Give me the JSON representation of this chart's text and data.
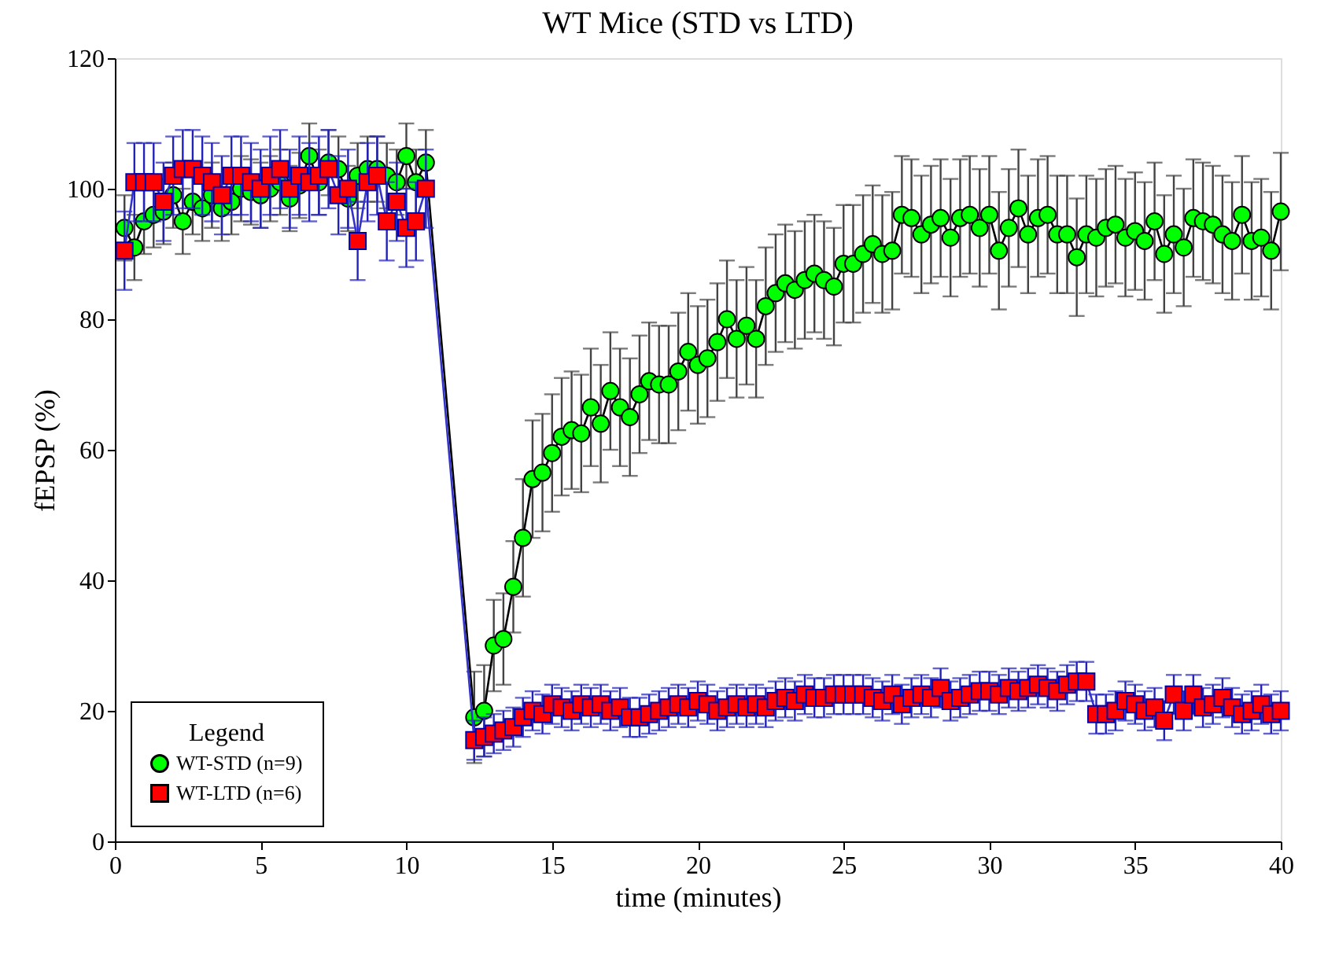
{
  "chart_data": {
    "type": "line",
    "title": "WT Mice (STD vs LTD)",
    "xlabel": "time (minutes)",
    "ylabel": "fEPSP (%)",
    "legend_title": "Legend",
    "x": [
      0.33,
      0.67,
      1,
      1.33,
      1.67,
      2,
      2.33,
      2.67,
      3,
      3.33,
      3.67,
      4,
      4.33,
      4.67,
      5,
      5.33,
      5.67,
      6,
      6.33,
      6.67,
      7,
      7.33,
      7.67,
      8,
      8.33,
      8.67,
      9,
      9.33,
      9.67,
      10,
      10.33,
      10.67,
      12.33,
      12.67,
      13,
      13.33,
      13.67,
      14,
      14.33,
      14.67,
      15,
      15.33,
      15.67,
      16,
      16.33,
      16.67,
      17,
      17.33,
      17.67,
      18,
      18.33,
      18.67,
      19,
      19.33,
      19.67,
      20,
      20.33,
      20.67,
      21,
      21.33,
      21.67,
      22,
      22.33,
      22.67,
      23,
      23.33,
      23.67,
      24,
      24.33,
      24.67,
      25,
      25.33,
      25.67,
      26,
      26.33,
      26.67,
      27,
      27.33,
      27.67,
      28,
      28.33,
      28.67,
      29,
      29.33,
      29.67,
      30,
      30.33,
      30.67,
      31,
      31.33,
      31.67,
      32,
      32.33,
      32.67,
      33,
      33.33,
      33.67,
      34,
      34.33,
      34.67,
      35,
      35.33,
      35.67,
      36,
      36.33,
      36.67,
      37,
      37.33,
      37.67,
      38,
      38.33,
      38.67,
      39,
      39.33,
      39.67,
      40
    ],
    "series": [
      {
        "name": "WT-STD (n=9)",
        "color": "#00ff00",
        "marker": "circle",
        "values": [
          94,
          91,
          95,
          96,
          96.5,
          99,
          95,
          98,
          97,
          99,
          97,
          98,
          100,
          99.5,
          99,
          100,
          101,
          98.5,
          100.5,
          105,
          101,
          104,
          103,
          98.5,
          102,
          103,
          103,
          102,
          101,
          105,
          101,
          104,
          19,
          20,
          30,
          31,
          39,
          46.5,
          55.5,
          56.5,
          59.5,
          62,
          63,
          62.5,
          66.5,
          64,
          69,
          66.5,
          65,
          68.5,
          70.5,
          70,
          70,
          72,
          75,
          73,
          74,
          76.5,
          80,
          77,
          79,
          77,
          82,
          84,
          85.5,
          84.5,
          86,
          87,
          86,
          85,
          88.5,
          88.5,
          90,
          91.5,
          90,
          90.5,
          96,
          95.5,
          93,
          94.5,
          95.5,
          92.5,
          95.5,
          96,
          94,
          96,
          90.5,
          94,
          97,
          93,
          95.5,
          96,
          93,
          93,
          89.5,
          93,
          92.5,
          94,
          94.5,
          92.5,
          93.5,
          92,
          95,
          90,
          93,
          91,
          95.5,
          95,
          94.5,
          93,
          92,
          96,
          92,
          92.5,
          90.5,
          96.5
        ],
        "errors": [
          5,
          5,
          5,
          5,
          5,
          5,
          5,
          5,
          5,
          5,
          5,
          5,
          5,
          5,
          5,
          5,
          5,
          5,
          5,
          5,
          5,
          5,
          5,
          5,
          5,
          5,
          5,
          5,
          5,
          5,
          5,
          5,
          7,
          7,
          7,
          7,
          7,
          9,
          9,
          9,
          9,
          9,
          9,
          9,
          9,
          9,
          9,
          9,
          9,
          9,
          9,
          9,
          9,
          9,
          9,
          9,
          9,
          9,
          9,
          9,
          9,
          9,
          9,
          9,
          9,
          9,
          9,
          9,
          9,
          9,
          9,
          9,
          9,
          9,
          9,
          9,
          9,
          9,
          9,
          9,
          9,
          9,
          9,
          9,
          9,
          9,
          9,
          9,
          9,
          9,
          9,
          9,
          9,
          9,
          9,
          9,
          9,
          9,
          9,
          9,
          9,
          9,
          9,
          9,
          9,
          9,
          9,
          9,
          9,
          9,
          9,
          9,
          9,
          9,
          9,
          9
        ]
      },
      {
        "name": "WT-LTD (n=6)",
        "color": "#ff0000",
        "marker": "square",
        "values": [
          90.5,
          101,
          101,
          101,
          98,
          102,
          103,
          103,
          102,
          101,
          99,
          102,
          102,
          101,
          100,
          102,
          103,
          100,
          102,
          101,
          102,
          103,
          99,
          100,
          92,
          101,
          102,
          95,
          98,
          94,
          95,
          100,
          15.5,
          16,
          16.5,
          17,
          17.5,
          19,
          20,
          19.5,
          21,
          20.5,
          20,
          21,
          20.5,
          21,
          20,
          20.5,
          19,
          19,
          19.5,
          20,
          20.5,
          21,
          20.5,
          21.5,
          21,
          20,
          20.5,
          21,
          20.5,
          21,
          20.5,
          21.5,
          22,
          21.5,
          22.5,
          22,
          22,
          22.5,
          22.5,
          22.5,
          22.5,
          22,
          21.5,
          22.5,
          21,
          22,
          22.5,
          22,
          23.5,
          21.5,
          22,
          22.5,
          23,
          23,
          22.5,
          23.5,
          23,
          23.5,
          24,
          23.5,
          23,
          24,
          24.5,
          24.5,
          19.5,
          19.5,
          20,
          21.5,
          21,
          20,
          20.5,
          18.5,
          22.5,
          20,
          22.5,
          20.5,
          21,
          22,
          20.5,
          19.5,
          20,
          21,
          19.5,
          20
        ],
        "errors": [
          6,
          6,
          6,
          6,
          6,
          6,
          6,
          6,
          6,
          6,
          6,
          6,
          6,
          6,
          6,
          6,
          6,
          6,
          6,
          6,
          6,
          6,
          6,
          6,
          6,
          6,
          6,
          6,
          6,
          6,
          6,
          6,
          3,
          3,
          3,
          3,
          3,
          3,
          3,
          3,
          3,
          3,
          3,
          3,
          3,
          3,
          3,
          3,
          3,
          3,
          3,
          3,
          3,
          3,
          3,
          3,
          3,
          3,
          3,
          3,
          3,
          3,
          3,
          3,
          3,
          3,
          3,
          3,
          3,
          3,
          3,
          3,
          3,
          3,
          3,
          3,
          3,
          3,
          3,
          3,
          3,
          3,
          3,
          3,
          3,
          3,
          3,
          3,
          3,
          3,
          3,
          3,
          3,
          3,
          3,
          3,
          3,
          3,
          3,
          3,
          3,
          3,
          3,
          3,
          3,
          3,
          3,
          3,
          3,
          3,
          3,
          3,
          3,
          3,
          3,
          3
        ]
      }
    ],
    "xlim": [
      0,
      40
    ],
    "xticks": [
      0,
      5,
      10,
      15,
      20,
      25,
      30,
      35,
      40
    ],
    "ylim": [
      0,
      120
    ],
    "yticks": [
      0,
      20,
      40,
      60,
      80,
      100,
      120
    ],
    "grid": false,
    "legend": "bottom left"
  }
}
